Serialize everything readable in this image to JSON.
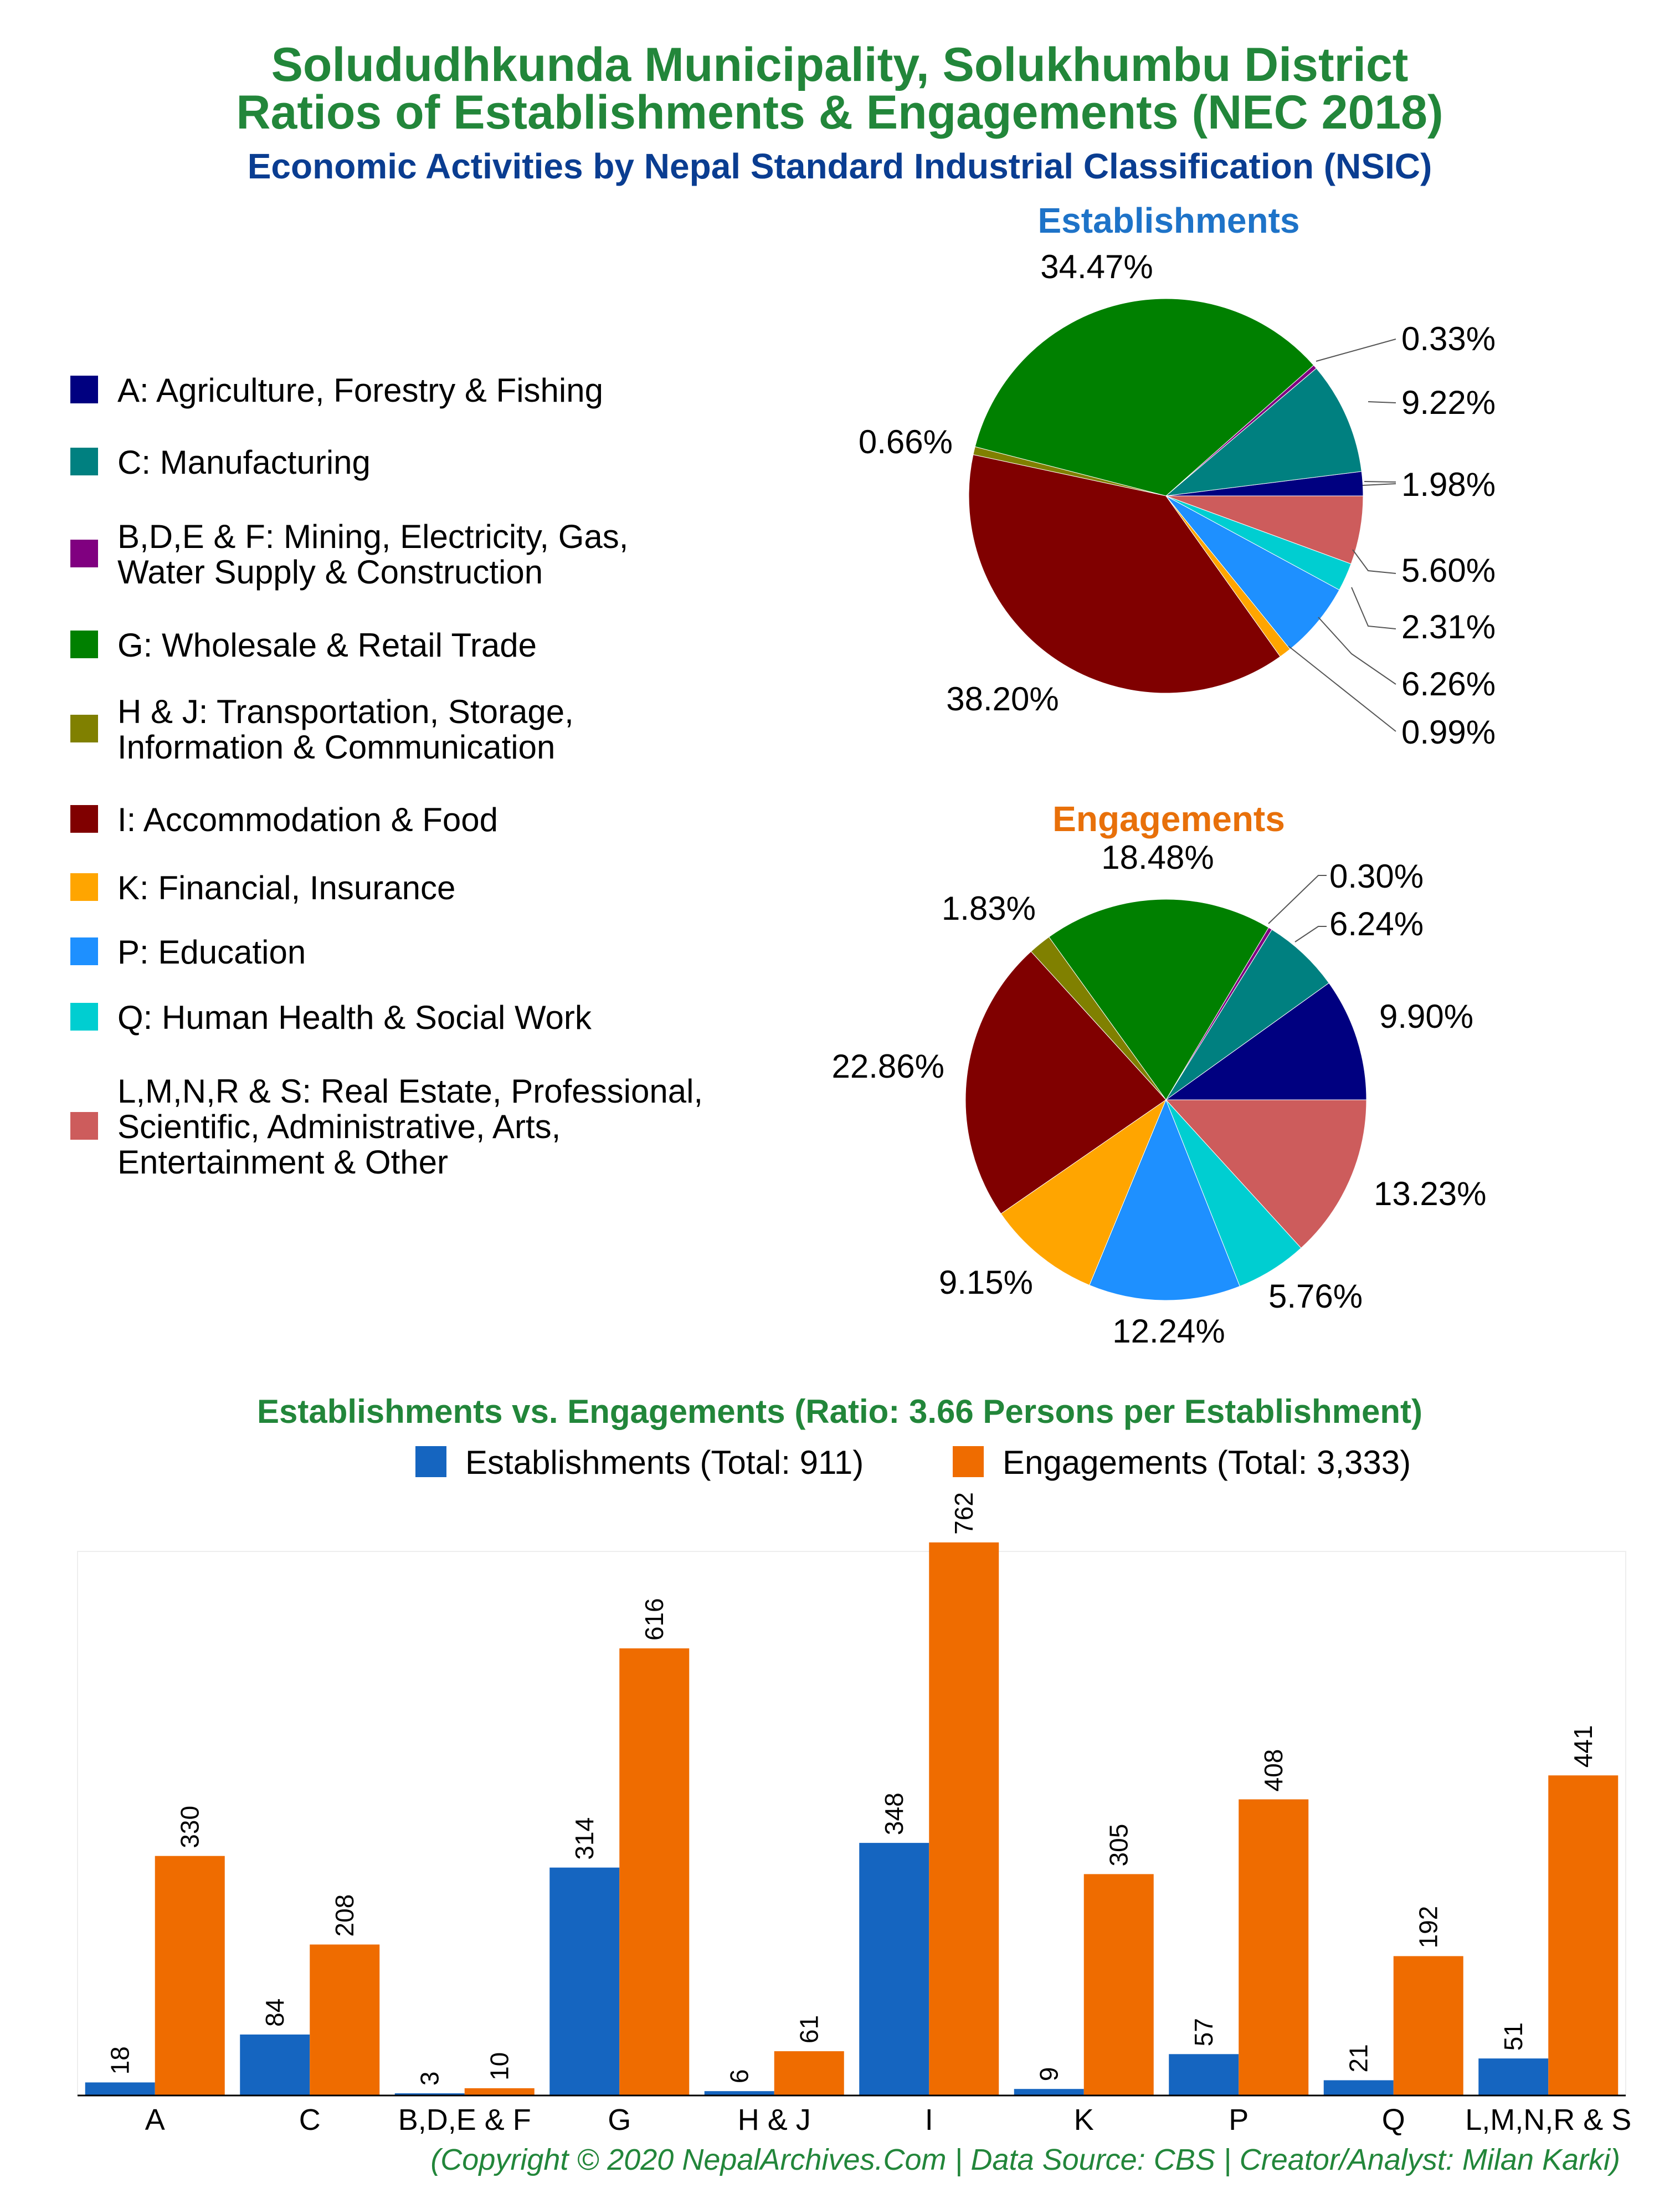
{
  "title_line1": "Solududhkunda Municipality, Solukhumbu District",
  "title_line2": "Ratios of Establishments & Engagements (NEC 2018)",
  "subtitle": "Economic Activities by Nepal Standard Industrial Classification (NSIC)",
  "colors": {
    "title": "#22863a",
    "subtitle": "#0a3d91",
    "estab_title": "#1e73c8",
    "engag_title": "#e8700a",
    "bar_estab": "#1565c0",
    "bar_engag": "#ef6c00"
  },
  "legend": [
    {
      "label_lines": [
        "A: Agriculture, Forestry & Fishing"
      ],
      "color": "#000080"
    },
    {
      "label_lines": [
        "C: Manufacturing"
      ],
      "color": "#008080"
    },
    {
      "label_lines": [
        "B,D,E & F: Mining, Electricity, Gas,",
        "Water Supply & Construction"
      ],
      "color": "#800080"
    },
    {
      "label_lines": [
        "G: Wholesale & Retail Trade"
      ],
      "color": "#008000"
    },
    {
      "label_lines": [
        "H & J: Transportation, Storage,",
        "Information & Communication"
      ],
      "color": "#808000"
    },
    {
      "label_lines": [
        "I: Accommodation & Food"
      ],
      "color": "#800000"
    },
    {
      "label_lines": [
        "K: Financial, Insurance"
      ],
      "color": "#ffa500"
    },
    {
      "label_lines": [
        "P: Education"
      ],
      "color": "#1e90ff"
    },
    {
      "label_lines": [
        "Q: Human Health & Social Work"
      ],
      "color": "#00ced1"
    },
    {
      "label_lines": [
        "L,M,N,R & S: Real Estate, Professional,",
        "Scientific, Administrative, Arts,",
        "Entertainment & Other"
      ],
      "color": "#cd5c5c"
    }
  ],
  "chart_data": [
    {
      "type": "pie",
      "title": "Establishments",
      "categories": [
        "A",
        "C",
        "B,D,E & F",
        "G",
        "H & J",
        "I",
        "K",
        "P",
        "Q",
        "L,M,N,R & S"
      ],
      "values": [
        1.98,
        9.22,
        0.33,
        34.47,
        0.66,
        38.2,
        0.99,
        6.26,
        2.31,
        5.6
      ],
      "labels": [
        "1.98%",
        "9.22%",
        "0.33%",
        "34.47%",
        "0.66%",
        "38.20%",
        "0.99%",
        "6.26%",
        "2.31%",
        "5.60%"
      ]
    },
    {
      "type": "pie",
      "title": "Engagements",
      "categories": [
        "A",
        "C",
        "B,D,E & F",
        "G",
        "H & J",
        "I",
        "K",
        "P",
        "Q",
        "L,M,N,R & S"
      ],
      "values": [
        9.9,
        6.24,
        0.3,
        18.48,
        1.83,
        22.86,
        9.15,
        12.24,
        5.76,
        13.23
      ],
      "labels": [
        "9.90%",
        "6.24%",
        "0.30%",
        "18.48%",
        "1.83%",
        "22.86%",
        "9.15%",
        "12.24%",
        "5.76%",
        "13.23%"
      ]
    },
    {
      "type": "bar",
      "title": "Establishments vs. Engagements (Ratio: 3.66 Persons per Establishment)",
      "categories": [
        "A",
        "C",
        "B,D,E & F",
        "G",
        "H & J",
        "I",
        "K",
        "P",
        "Q",
        "L,M,N,R & S"
      ],
      "series": [
        {
          "name": "Establishments (Total: 911)",
          "values": [
            18,
            84,
            3,
            314,
            6,
            348,
            9,
            57,
            21,
            51
          ]
        },
        {
          "name": "Engagements (Total: 3,333)",
          "values": [
            330,
            208,
            10,
            616,
            61,
            762,
            305,
            408,
            192,
            441
          ]
        }
      ],
      "ylim": [
        0,
        800
      ]
    }
  ],
  "footer": "(Copyright © 2020 NepalArchives.Com | Data Source: CBS | Creator/Analyst: Milan Karki)"
}
